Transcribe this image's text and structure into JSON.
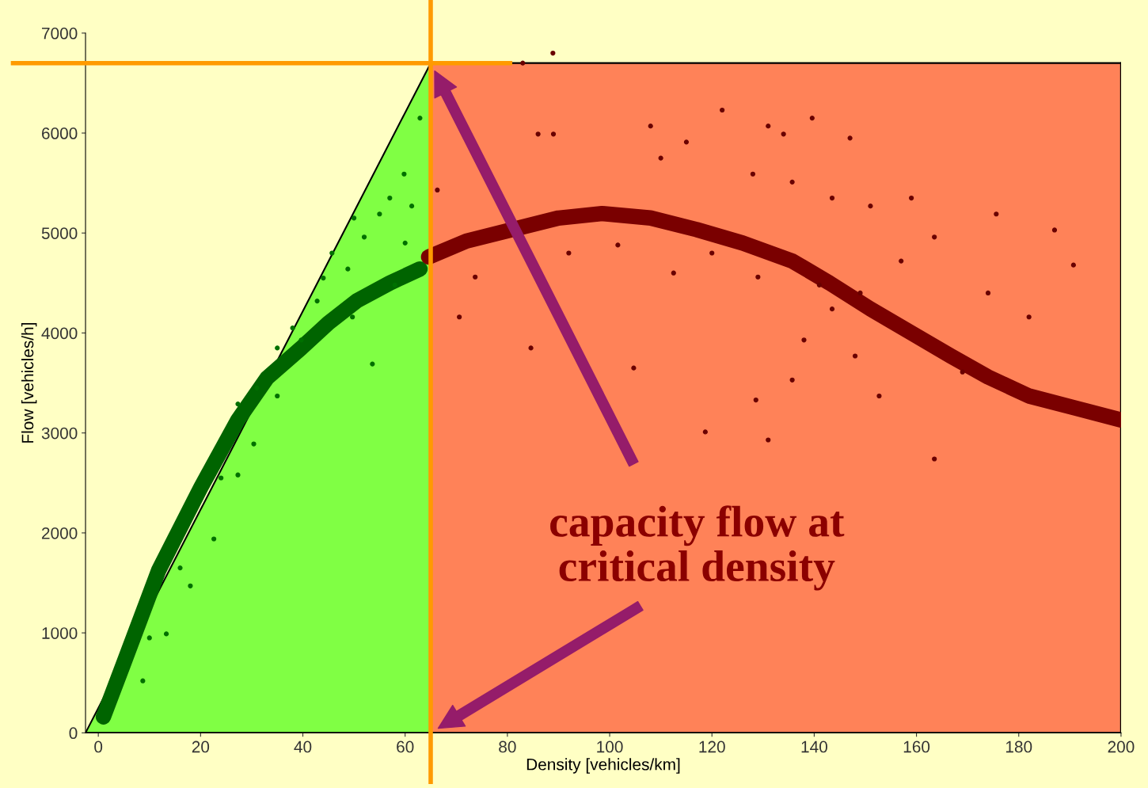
{
  "chart_data": {
    "type": "scatter",
    "xlabel": "Density [vehicles/km]",
    "ylabel": "Flow [vehicles/h]",
    "xlim": [
      -2.5,
      200
    ],
    "xticks": [
      0,
      20,
      40,
      60,
      80,
      100,
      120,
      140,
      160,
      180,
      200
    ],
    "ylim": [
      0,
      7000
    ],
    "yticks": [
      0,
      1000,
      2000,
      3000,
      4000,
      5000,
      6000,
      7000
    ],
    "grid": false,
    "series": [
      {
        "type": "area",
        "color": "#80ff44",
        "x": [
          -2.5,
          65
        ],
        "values": [
          0,
          6700
        ]
      },
      {
        "type": "area",
        "color": "#ff8258",
        "x": [
          65,
          200
        ],
        "values": [
          6700,
          6700
        ]
      },
      {
        "marker": "circle",
        "color": "#007000",
        "x": [
          53.6,
          49.7,
          58,
          61.3,
          59.8,
          62.9,
          55,
          52,
          48.8,
          42.8,
          39.7,
          35,
          30.4,
          27.3,
          22.6,
          18,
          13.3,
          8.7,
          45.7,
          35,
          27.3,
          57,
          60,
          50,
          44,
          38,
          31,
          24,
          16,
          10
        ],
        "values": [
          3690,
          4160,
          4480,
          5270,
          5590,
          6150,
          5190,
          4960,
          4640,
          4320,
          3930,
          3370,
          2890,
          2580,
          1940,
          1470,
          990,
          520,
          4800,
          3850,
          3290,
          5350,
          4900,
          5150,
          4550,
          4050,
          3450,
          2550,
          1650,
          950
        ]
      },
      {
        "marker": "circle",
        "color": "#6a0000",
        "x": [
          66.3,
          86,
          89,
          108,
          110,
          115,
          122,
          131,
          134,
          139.6,
          147,
          128,
          135.7,
          143.5,
          151,
          159,
          163.5,
          174,
          182,
          187,
          190.7,
          175.6,
          169,
          163.5,
          152.7,
          135.7,
          138,
          131,
          128.6,
          118.7,
          104.7,
          84.6,
          73.7,
          70.6,
          92,
          101.6,
          112.5,
          120,
          129,
          141,
          149,
          157,
          143.5,
          148,
          88.9,
          83
        ],
        "values": [
          5430,
          5990,
          5990,
          6070,
          5750,
          5910,
          6230,
          6070,
          5990,
          6150,
          5950,
          5590,
          5510,
          5350,
          5270,
          5350,
          4960,
          4400,
          4160,
          5030,
          4680,
          5190,
          3610,
          2740,
          3370,
          3530,
          3930,
          2930,
          3330,
          3010,
          3650,
          3850,
          4560,
          4160,
          4800,
          4880,
          4600,
          4800,
          4560,
          4480,
          4400,
          4720,
          4240,
          3770,
          6800,
          6700
        ]
      },
      {
        "type": "line",
        "color": "#006400",
        "x": [
          1,
          5,
          11.8,
          20,
          27.3,
          33,
          39.7,
          45,
          50.5,
          57,
          62.9
        ],
        "values": [
          160,
          700,
          1625,
          2450,
          3130,
          3550,
          3850,
          4100,
          4320,
          4500,
          4640
        ]
      },
      {
        "type": "line",
        "color": "#7a0000",
        "x": [
          64.6,
          72,
          90,
          98.5,
          108,
          117,
          126,
          135.7,
          143,
          151,
          159,
          166.7,
          174,
          182,
          191,
          200
        ],
        "values": [
          4760,
          4920,
          5150,
          5195,
          5150,
          5035,
          4900,
          4720,
          4500,
          4240,
          4000,
          3770,
          3560,
          3370,
          3250,
          3130
        ]
      }
    ],
    "ref_lines": [
      {
        "axis": "x",
        "value": 65,
        "color": "#ff9a00"
      },
      {
        "axis": "y",
        "value": 6700,
        "color": "#ff9a00"
      }
    ],
    "annotations": [
      "capacity flow at\ncritical density"
    ]
  }
}
